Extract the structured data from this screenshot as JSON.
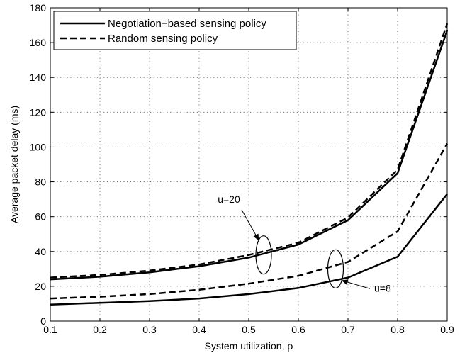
{
  "chart_data": {
    "type": "line",
    "xlabel": "System utilization, ρ",
    "ylabel": "Average packet delay (ms)",
    "xlim": [
      0.1,
      0.9
    ],
    "ylim": [
      0,
      180
    ],
    "xticks": [
      "0.1",
      "0.2",
      "0.3",
      "0.4",
      "0.5",
      "0.6",
      "0.7",
      "0.8",
      "0.9"
    ],
    "yticks": [
      "0",
      "20",
      "40",
      "60",
      "80",
      "100",
      "120",
      "140",
      "160",
      "180"
    ],
    "grid": true,
    "legend_position": "top-left",
    "x": [
      0.1,
      0.2,
      0.3,
      0.4,
      0.5,
      0.6,
      0.7,
      0.8,
      0.9
    ],
    "series": [
      {
        "name": "Negotiation−based sensing policy",
        "style": "solid",
        "group": "u=20",
        "values": [
          24,
          25.5,
          28,
          31.5,
          36.5,
          44,
          58,
          85,
          167
        ]
      },
      {
        "name": "Random sensing policy",
        "style": "dashed",
        "group": "u=20",
        "values": [
          25,
          26.5,
          29,
          32.5,
          38,
          45,
          59.5,
          87,
          171
        ]
      },
      {
        "name": "Negotiation−based sensing policy",
        "style": "solid",
        "group": "u=8",
        "values": [
          9.5,
          10.5,
          11.5,
          13,
          15.5,
          19,
          25,
          37,
          73
        ]
      },
      {
        "name": "Random sensing policy",
        "style": "dashed",
        "group": "u=8",
        "values": [
          13,
          14,
          15.5,
          18,
          21.5,
          26,
          34,
          51.5,
          102
        ]
      }
    ],
    "legend": [
      {
        "label": "Negotiation−based sensing policy",
        "style": "solid"
      },
      {
        "label": "Random sensing policy",
        "style": "dashed"
      }
    ],
    "annotations": [
      {
        "text": "u=20",
        "ellipse_center": [
          0.53,
          38
        ],
        "label_at": [
          0.46,
          68
        ]
      },
      {
        "text": "u=8",
        "ellipse_center": [
          0.675,
          30
        ],
        "label_at": [
          0.75,
          17
        ]
      }
    ],
    "colors": {
      "lines": "#000000",
      "background": "#ffffff"
    }
  }
}
